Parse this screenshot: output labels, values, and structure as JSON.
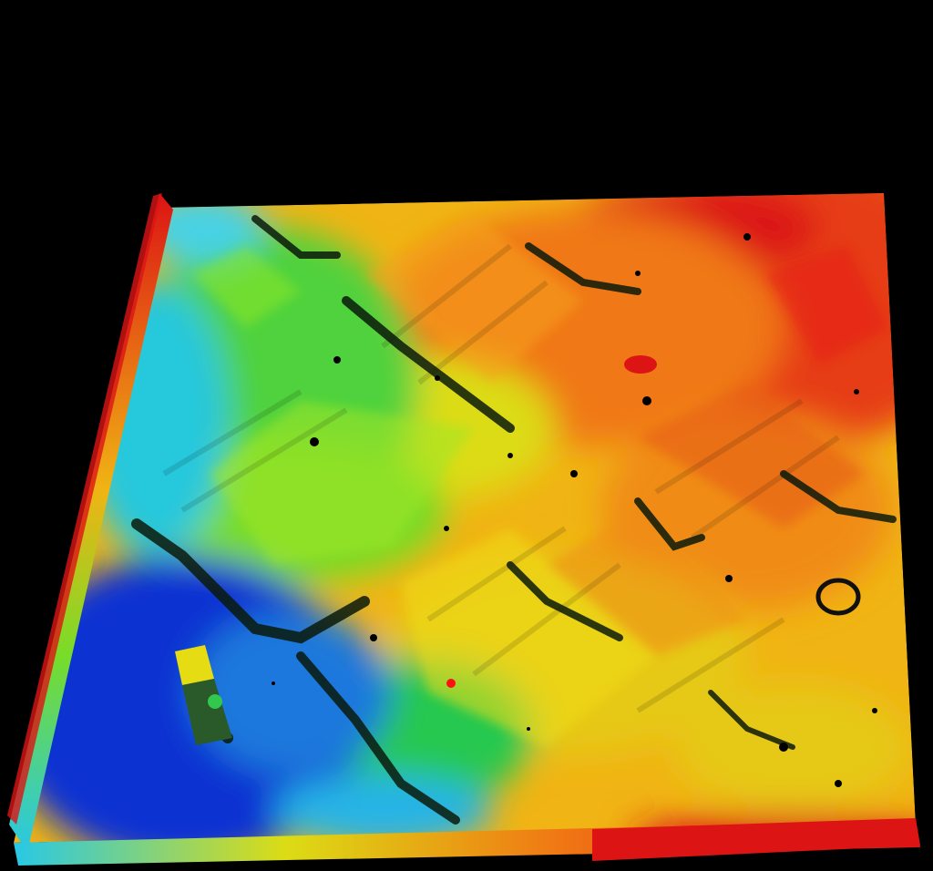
{
  "scene": {
    "subject": "3d-terrain-elevation-surface",
    "background_color": "#000000",
    "colormap": [
      "#0a28c8",
      "#1e64dc",
      "#28c8e6",
      "#14c850",
      "#78dc28",
      "#dcdc14",
      "#f0b414",
      "#f07814",
      "#e63c14",
      "#dc1414"
    ],
    "marker_color": "#ff1010",
    "hole_color": "#000000"
  }
}
